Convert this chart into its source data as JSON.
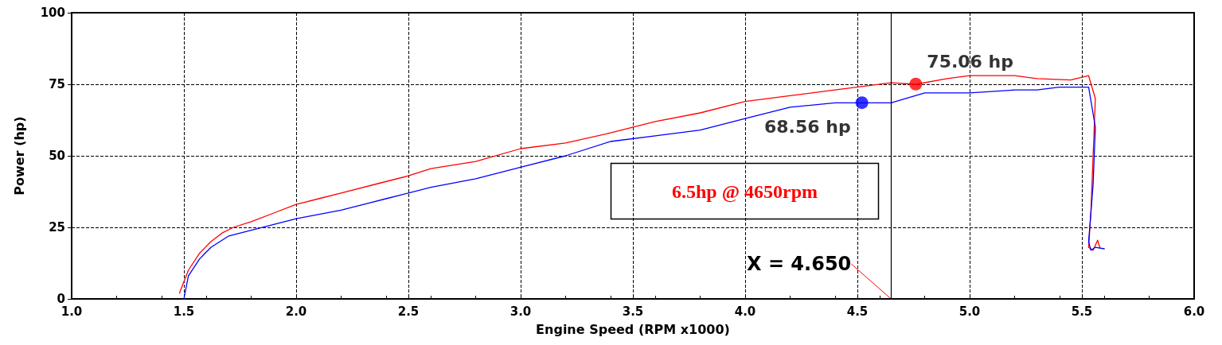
{
  "chart_data": {
    "type": "line",
    "xlabel": "Engine Speed (RPM x1000)",
    "ylabel": "Power (hp)",
    "xlim": [
      1.0,
      6.0
    ],
    "xticks": [
      {
        "value": 1,
        "label": "1.0"
      },
      {
        "value": 1.5,
        "label": "1.5"
      },
      {
        "value": 2,
        "label": "2.0"
      },
      {
        "value": 2.5,
        "label": "2.5"
      },
      {
        "value": 3,
        "label": "3.0"
      },
      {
        "value": 3.5,
        "label": "3.5"
      },
      {
        "value": 4,
        "label": "4.0"
      },
      {
        "value": 4.5,
        "label": "4.5"
      },
      {
        "value": 5,
        "label": "5.0"
      },
      {
        "value": 5.5,
        "label": "5.5"
      },
      {
        "value": 6,
        "label": "6.0"
      }
    ],
    "ylim": [
      0,
      100
    ],
    "yticks": [
      0,
      25,
      50,
      75,
      100
    ],
    "grid": true,
    "marker": "none",
    "line_style": "solid",
    "series": [
      {
        "color": "#ff0000",
        "x": [
          1.48,
          1.52,
          1.57,
          1.62,
          1.67,
          1.72,
          1.8,
          1.9,
          2.0,
          2.1,
          2.2,
          2.35,
          2.5,
          2.6,
          2.8,
          3.0,
          3.2,
          3.4,
          3.6,
          3.8,
          4.0,
          4.2,
          4.4,
          4.65,
          4.76,
          4.9,
          5.0,
          5.2,
          5.3,
          5.45,
          5.53,
          5.56,
          5.55,
          5.54,
          5.53,
          5.55,
          5.57,
          5.58
        ],
        "values": [
          2,
          10,
          16,
          20,
          23,
          25,
          27,
          30,
          33,
          35,
          37,
          40,
          43,
          45.5,
          48,
          52.5,
          54.5,
          58,
          62,
          65,
          69,
          71,
          73,
          75.5,
          75,
          77,
          78,
          78,
          77,
          76.5,
          78,
          70,
          50,
          30,
          18,
          17,
          20.5,
          18
        ]
      },
      {
        "color": "#0000ff",
        "x": [
          1.5,
          1.52,
          1.57,
          1.62,
          1.7,
          1.8,
          2.0,
          2.2,
          2.4,
          2.6,
          2.8,
          3.0,
          3.2,
          3.4,
          3.6,
          3.8,
          4.0,
          4.2,
          4.4,
          4.52,
          4.65,
          4.8,
          5.0,
          5.2,
          5.3,
          5.4,
          5.53,
          5.56,
          5.55,
          5.53,
          5.54,
          5.56,
          5.6
        ],
        "values": [
          0,
          8,
          14,
          18,
          22,
          24,
          28,
          31,
          35,
          39,
          42,
          46,
          50,
          55,
          57,
          59,
          63,
          67,
          68.5,
          68.5,
          68.5,
          72,
          72,
          73,
          73,
          74,
          74,
          60,
          40,
          20,
          17,
          18,
          17.5
        ]
      },
      {
        "type": "scatter",
        "marker": "circle",
        "color": "#ff0000",
        "x": [
          4.76
        ],
        "values": [
          75.06
        ],
        "value_labels": [
          "75.06 hp"
        ]
      },
      {
        "type": "scatter",
        "marker": "circle",
        "color": "#0000ff",
        "x": [
          4.52
        ],
        "values": [
          68.56
        ],
        "value_labels": [
          "68.56 hp"
        ]
      }
    ],
    "ref_lines": [
      {
        "axis": "x",
        "value": 4.65,
        "label": "X = 4.650",
        "color": "#000000"
      }
    ],
    "annotations": [
      "6.5hp @ 4650rpm"
    ]
  }
}
